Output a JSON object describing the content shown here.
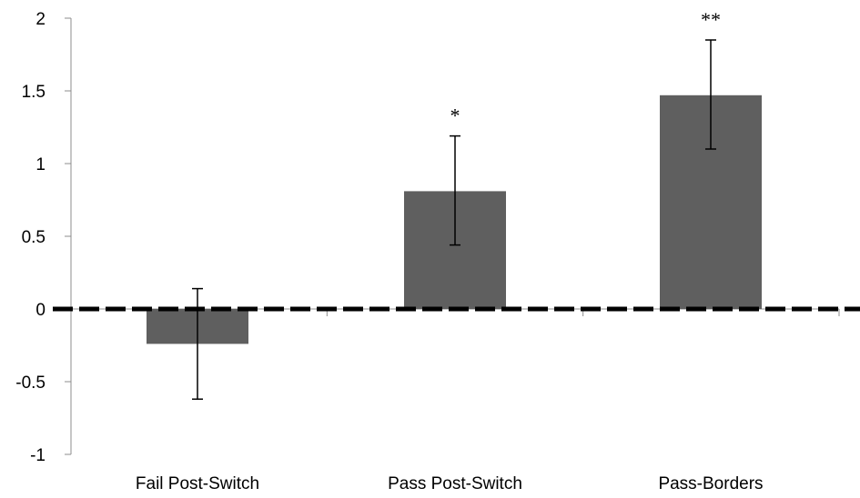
{
  "chart_data": {
    "type": "bar",
    "title": "",
    "xlabel": "",
    "ylabel": "",
    "ylim": [
      -1,
      2
    ],
    "yticks": [
      2,
      1.5,
      1,
      0.5,
      0,
      -0.5,
      -1
    ],
    "ytick_labels": [
      "2",
      "1.5",
      "1",
      "0.5",
      "0",
      "-0.5",
      "-1"
    ],
    "categories": [
      "Fail Post-Switch",
      "Pass Post-Switch",
      "Pass-Borders"
    ],
    "values": [
      -0.24,
      0.81,
      1.47
    ],
    "error_low": [
      -0.62,
      0.44,
      1.1
    ],
    "error_high": [
      0.14,
      1.19,
      1.85
    ],
    "significance": [
      "",
      "*",
      "**"
    ],
    "reference_line": 0,
    "bar_color": "#5f5f5f",
    "reference_line_color": "#000000",
    "grid": false
  }
}
